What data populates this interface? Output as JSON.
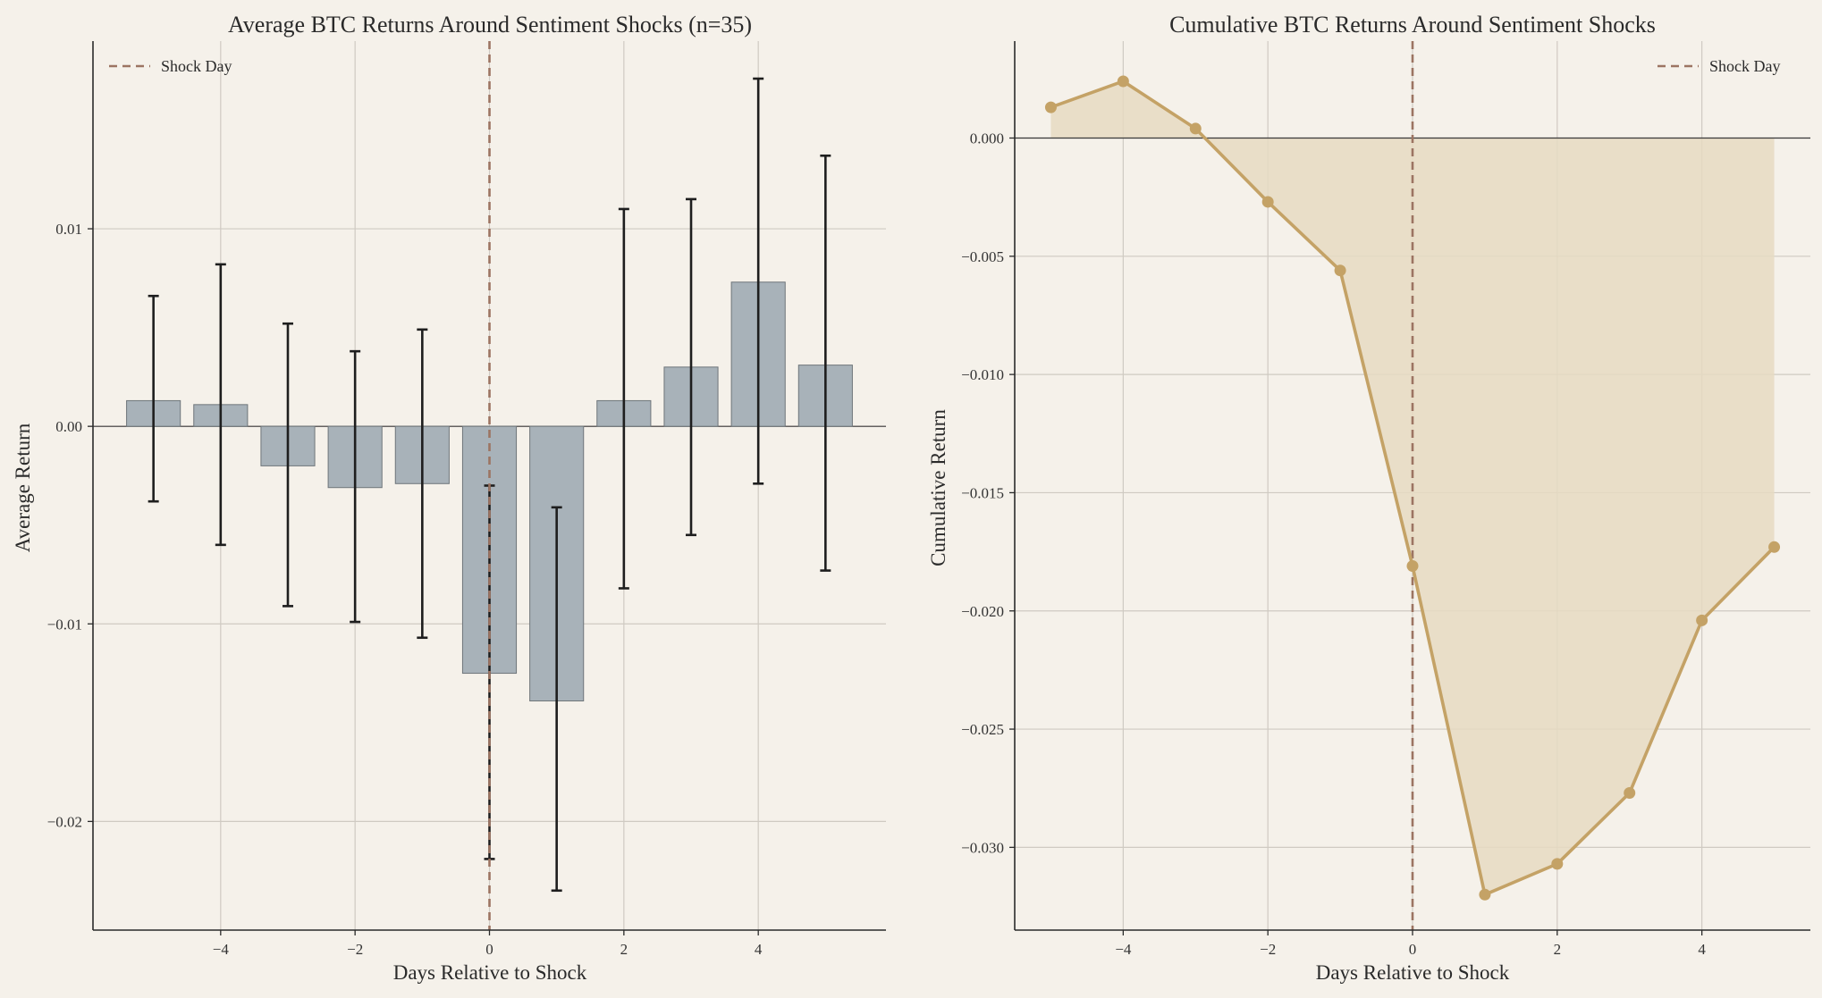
{
  "colors": {
    "background": "#f5f1ea",
    "bar_fill": "#a8b2b9",
    "bar_edge": "#6e757a",
    "error_bar": "#1e1e1e",
    "shock_line": "#9c7462",
    "cum_line": "#c4a266",
    "cum_fill": "#e6dac2",
    "grid": "#cfcac2"
  },
  "chart_data": [
    {
      "type": "bar",
      "title": "Average BTC Returns Around Sentiment Shocks (n=35)",
      "xlabel": "Days Relative to Shock",
      "ylabel": "Average Return",
      "x": [
        -5,
        -4,
        -3,
        -2,
        -1,
        0,
        1,
        2,
        3,
        4,
        5
      ],
      "values": [
        0.0013,
        0.0011,
        -0.002,
        -0.0031,
        -0.0029,
        -0.0125,
        -0.0139,
        0.0013,
        0.003,
        0.0073,
        0.0031
      ],
      "error_low": [
        -0.0038,
        -0.006,
        -0.0091,
        -0.0099,
        -0.0107,
        -0.0219,
        -0.0235,
        -0.0082,
        -0.0055,
        -0.0029,
        -0.0073
      ],
      "error_high": [
        0.0066,
        0.0082,
        0.0052,
        0.0038,
        0.0049,
        -0.003,
        -0.0041,
        0.011,
        0.0115,
        0.0176,
        0.0137
      ],
      "xticks": [
        -4,
        -2,
        0,
        2,
        4
      ],
      "xtick_labels": [
        "−4",
        "−2",
        "0",
        "2",
        "4"
      ],
      "yticks": [
        -0.02,
        -0.01,
        0.0,
        0.01
      ],
      "ytick_labels": [
        "−0.02",
        "−0.01",
        "0.00",
        "0.01"
      ],
      "xlim": [
        -5.9,
        5.9
      ],
      "ylim": [
        -0.0255,
        0.0195
      ],
      "vline_x": 0,
      "legend": [
        "Shock Day"
      ],
      "legend_position": "top-left",
      "grid": true
    },
    {
      "type": "area",
      "title": "Cumulative BTC Returns Around Sentiment Shocks",
      "xlabel": "Days Relative to Shock",
      "ylabel": "Cumulative Return",
      "x": [
        -5,
        -4,
        -3,
        -2,
        -1,
        0,
        1,
        2,
        3,
        4,
        5
      ],
      "values": [
        0.0013,
        0.0024,
        0.0004,
        -0.0027,
        -0.0056,
        -0.0181,
        -0.032,
        -0.0307,
        -0.0277,
        -0.0204,
        -0.0173
      ],
      "xticks": [
        -4,
        -2,
        0,
        2,
        4
      ],
      "xtick_labels": [
        "−4",
        "−2",
        "0",
        "2",
        "4"
      ],
      "yticks": [
        0.0,
        -0.005,
        -0.01,
        -0.015,
        -0.02,
        -0.025,
        -0.03
      ],
      "ytick_labels": [
        "0.000",
        "−0.005",
        "−0.010",
        "−0.015",
        "−0.020",
        "−0.025",
        "−0.030"
      ],
      "xlim": [
        -5.5,
        5.5
      ],
      "ylim": [
        -0.0335,
        0.0041
      ],
      "vline_x": 0,
      "legend": [
        "Shock Day"
      ],
      "legend_position": "top-right",
      "grid": true
    }
  ]
}
